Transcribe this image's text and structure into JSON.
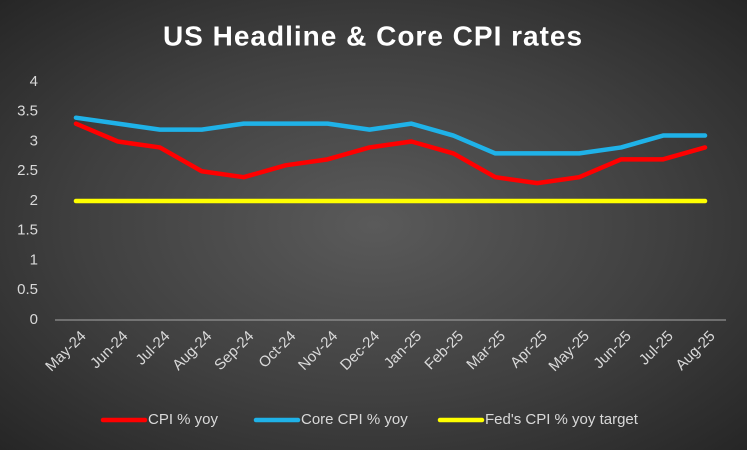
{
  "chart_data": {
    "type": "line",
    "title": "US Headline & Core CPI rates",
    "categories": [
      "May-24",
      "Jun-24",
      "Jul-24",
      "Aug-24",
      "Sep-24",
      "Oct-24",
      "Nov-24",
      "Dec-24",
      "Jan-25",
      "Feb-25",
      "Mar-25",
      "Apr-25",
      "May-25",
      "Jun-25",
      "Jul-25",
      "Aug-25"
    ],
    "series": [
      {
        "name": "CPI % yoy",
        "color": "#ff0000",
        "values": [
          3.3,
          3.0,
          2.9,
          2.5,
          2.4,
          2.6,
          2.7,
          2.9,
          3.0,
          2.8,
          2.4,
          2.3,
          2.4,
          2.7,
          2.7,
          2.9
        ]
      },
      {
        "name": "Core CPI % yoy",
        "color": "#1fb2e8",
        "values": [
          3.4,
          3.3,
          3.2,
          3.2,
          3.3,
          3.3,
          3.3,
          3.2,
          3.3,
          3.1,
          2.8,
          2.8,
          2.8,
          2.9,
          3.1,
          3.1
        ]
      },
      {
        "name": "Fed's CPI % yoy target",
        "color": "#ffff00",
        "values": [
          2,
          2,
          2,
          2,
          2,
          2,
          2,
          2,
          2,
          2,
          2,
          2,
          2,
          2,
          2,
          2
        ]
      }
    ],
    "ylim": [
      0,
      4
    ],
    "yticks": [
      0,
      0.5,
      1,
      1.5,
      2,
      2.5,
      3,
      3.5,
      4
    ],
    "grid": false,
    "legend": "bottom"
  }
}
